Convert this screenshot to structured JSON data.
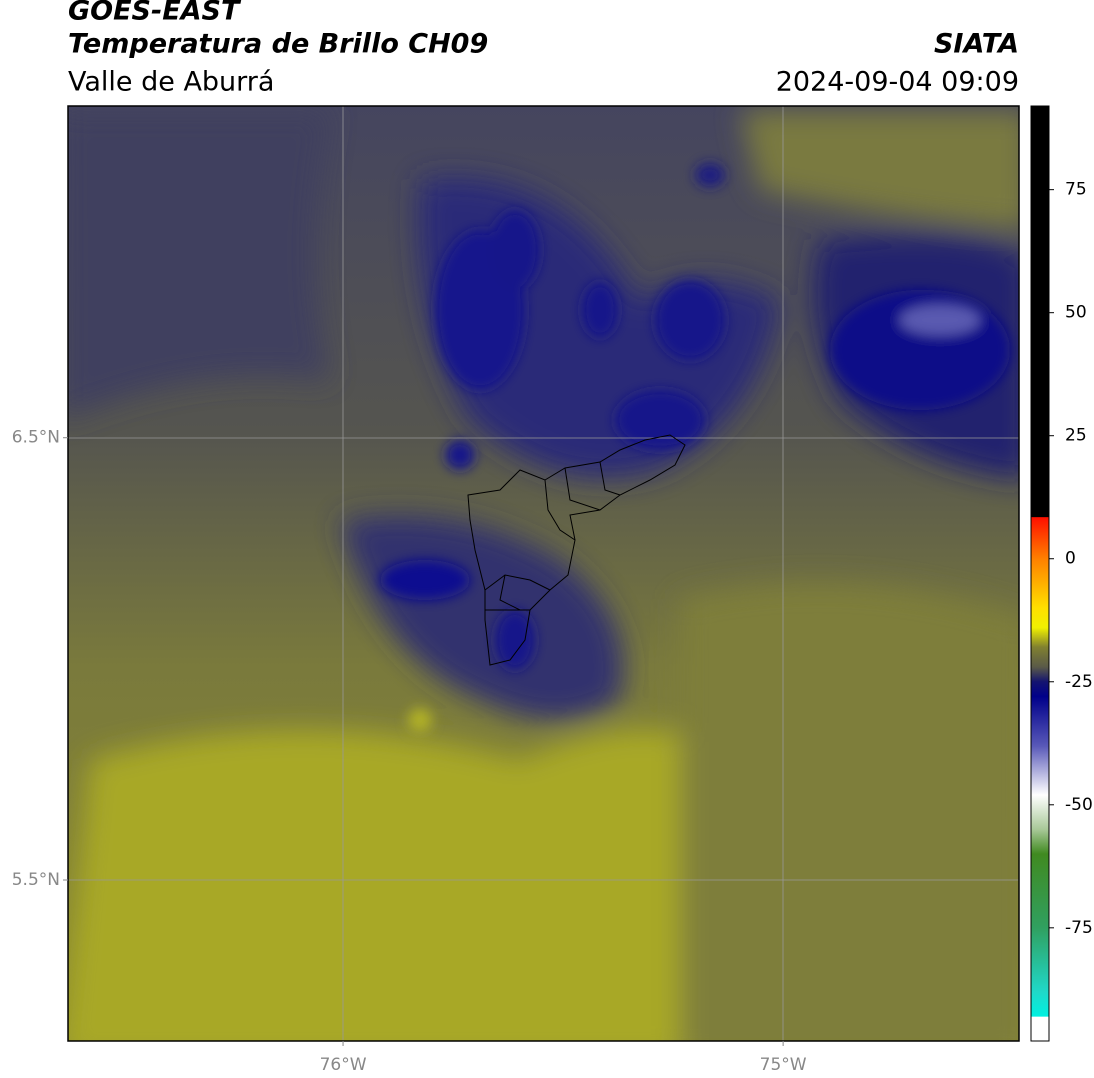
{
  "header": {
    "title": "GOES-EAST",
    "subtitle": "Temperatura de Brillo CH09",
    "region": "Valle de Aburrá",
    "source": "SIATA",
    "datetime": "2024-09-04 09:09"
  },
  "map": {
    "latlim": [
      5.136,
      7.25
    ],
    "lonlim": [
      -76.625,
      -74.464
    ],
    "lat_ticks": [
      {
        "value": 6.5,
        "label": "6.5°N"
      },
      {
        "value": 5.5,
        "label": "5.5°N"
      }
    ],
    "lon_ticks": [
      {
        "value": -76,
        "label": "76°W"
      },
      {
        "value": -75,
        "label": "75°W"
      }
    ]
  },
  "colorbar": {
    "range": [
      -98,
      92
    ],
    "ticks": [
      75,
      50,
      25,
      0,
      -25,
      -50,
      -75
    ],
    "stops": [
      {
        "value": 92,
        "color": "#000000"
      },
      {
        "value": 8.5,
        "color": "#000000"
      },
      {
        "value": 8.4,
        "color": "#ff1000"
      },
      {
        "value": 0,
        "color": "#ff8000"
      },
      {
        "value": -10,
        "color": "#ffe000"
      },
      {
        "value": -14,
        "color": "#f0f000"
      },
      {
        "value": -18,
        "color": "#808030"
      },
      {
        "value": -22,
        "color": "#5a5a48"
      },
      {
        "value": -25,
        "color": "#141470"
      },
      {
        "value": -28,
        "color": "#00008a"
      },
      {
        "value": -38,
        "color": "#5858b8"
      },
      {
        "value": -48,
        "color": "#ffffff"
      },
      {
        "value": -55,
        "color": "#a8c898"
      },
      {
        "value": -60,
        "color": "#408a20"
      },
      {
        "value": -75,
        "color": "#30a060"
      },
      {
        "value": -88,
        "color": "#20d8c8"
      },
      {
        "value": -93,
        "color": "#00f0e0"
      },
      {
        "value": -93.1,
        "color": "#ffffff"
      },
      {
        "value": -98,
        "color": "#ffffff"
      }
    ]
  }
}
